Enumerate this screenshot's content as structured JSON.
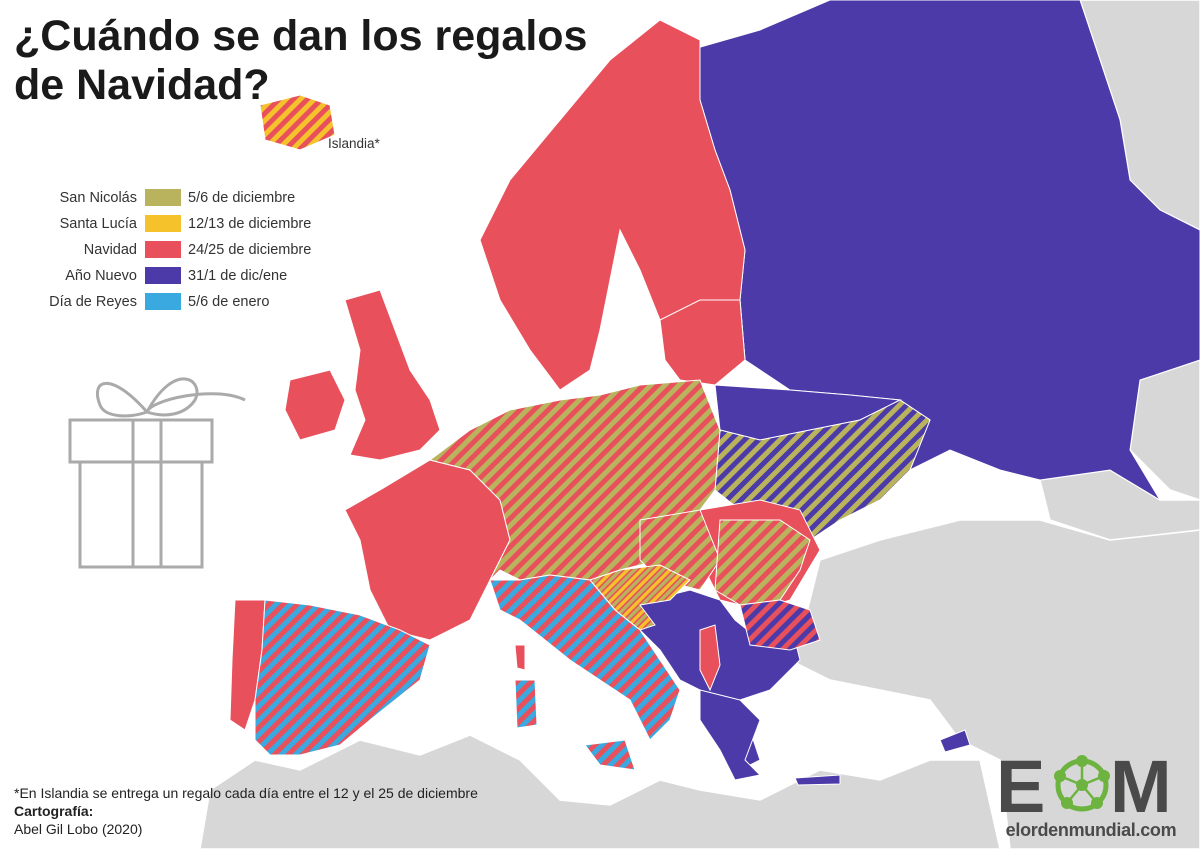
{
  "title": {
    "line1": "¿Cuándo se dan los regalos",
    "line2": "de Navidad?"
  },
  "legend": [
    {
      "label": "San Nicolás",
      "value": "5/6 de diciembre",
      "color": "#b8b35c"
    },
    {
      "label": "Santa Lucía",
      "value": "12/13 de diciembre",
      "color": "#f5c22b"
    },
    {
      "label": "Navidad",
      "value": "24/25 de diciembre",
      "color": "#e8505c"
    },
    {
      "label": "Año Nuevo",
      "value": "31/1 de dic/ene",
      "color": "#4b3aa8"
    },
    {
      "label": "Día de Reyes",
      "value": "5/6 de enero",
      "color": "#3aa9e0"
    }
  ],
  "iceland_label": "Islandia*",
  "footnote": {
    "note": "*En Islandia se entrega un regalo cada día entre el 12 y el 25 de diciembre",
    "credit_label": "Cartografía:",
    "credit_author": "Abel Gil Lobo (2020)"
  },
  "logo": {
    "letters": [
      "E",
      "M"
    ],
    "url": "elordenmundial.com",
    "icon": "network-circle-icon"
  },
  "colors": {
    "land_other": "#d7d7d7",
    "sea": "#ffffff",
    "navidad": "#e8505c",
    "ano_nuevo": "#4b3aa8",
    "san_nicolas": "#b8b35c",
    "santa_lucia": "#f5c22b",
    "reyes": "#3aa9e0",
    "logo_green": "#6db33f",
    "logo_gray": "#4a4a4a"
  }
}
